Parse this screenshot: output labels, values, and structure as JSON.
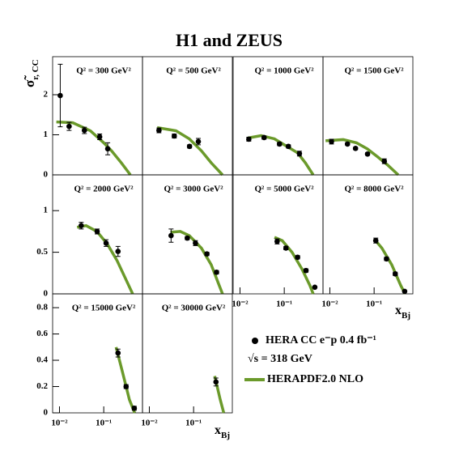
{
  "title": "H1 and ZEUS",
  "ylabel": {
    "symbol": "σ̃",
    "subscript": "r, CC"
  },
  "xlabel": {
    "symbol": "x",
    "subscript": "Bj"
  },
  "legend_note": "√s = 318 GeV",
  "chart_data": [
    {
      "type": "scatter",
      "label": "Q² = 300 GeV²",
      "xlim": [
        0.007,
        0.75
      ],
      "ylim": [
        0,
        2.95
      ],
      "yticks": [
        0,
        1,
        2
      ],
      "log_x": true,
      "series": [
        {
          "name": "HERA CC e⁻p 0.4 fb⁻¹",
          "color": "#000000",
          "x": [
            0.0104,
            0.0165,
            0.0366,
            0.081,
            0.123
          ],
          "values": [
            1.98,
            1.21,
            1.11,
            0.95,
            0.65
          ],
          "errors": [
            0.78,
            0.1,
            0.08,
            0.07,
            0.15
          ]
        },
        {
          "name": "HERAPDF2.0 NLO",
          "color": "#6b9a2b",
          "x": [
            0.0085,
            0.02,
            0.05,
            0.1,
            0.15,
            0.25,
            0.4
          ],
          "values": [
            1.32,
            1.3,
            1.1,
            0.8,
            0.6,
            0.3,
            0
          ]
        }
      ]
    },
    {
      "type": "scatter",
      "label": "Q² = 500 GeV²",
      "xlim": [
        0.007,
        0.75
      ],
      "ylim": [
        0,
        2.95
      ],
      "log_x": true,
      "series": [
        {
          "color": "#000000",
          "x": [
            0.0165,
            0.0366,
            0.081,
            0.128
          ],
          "values": [
            1.11,
            0.97,
            0.71,
            0.83
          ],
          "errors": [
            0.06,
            0.05,
            0.04,
            0.08
          ]
        },
        {
          "color": "#6b9a2b",
          "x": [
            0.015,
            0.04,
            0.08,
            0.15,
            0.25,
            0.45
          ],
          "values": [
            1.18,
            1.1,
            0.9,
            0.6,
            0.3,
            0
          ]
        }
      ]
    },
    {
      "type": "scatter",
      "label": "Q² = 1000 GeV²",
      "xlim": [
        0.007,
        0.75
      ],
      "ylim": [
        0,
        2.95
      ],
      "log_x": true,
      "series": [
        {
          "color": "#000000",
          "x": [
            0.0158,
            0.035,
            0.078,
            0.124,
            0.22
          ],
          "values": [
            0.89,
            0.93,
            0.77,
            0.71,
            0.53
          ],
          "errors": [
            0.05,
            0.04,
            0.04,
            0.04,
            0.06
          ]
        },
        {
          "color": "#6b9a2b",
          "x": [
            0.015,
            0.03,
            0.06,
            0.1,
            0.2,
            0.3,
            0.45
          ],
          "values": [
            0.92,
            0.98,
            0.9,
            0.75,
            0.55,
            0.3,
            0
          ]
        }
      ]
    },
    {
      "type": "scatter",
      "label": "Q² = 1500 GeV²",
      "xlim": [
        0.007,
        0.75
      ],
      "ylim": [
        0,
        2.95
      ],
      "log_x": true,
      "series": [
        {
          "color": "#000000",
          "x": [
            0.0109,
            0.025,
            0.038,
            0.071,
            0.17
          ],
          "values": [
            0.83,
            0.77,
            0.66,
            0.52,
            0.34
          ],
          "errors": [
            0.06,
            0.03,
            0.03,
            0.03,
            0.06
          ]
        },
        {
          "color": "#6b9a2b",
          "x": [
            0.008,
            0.02,
            0.04,
            0.07,
            0.12,
            0.2,
            0.35
          ],
          "values": [
            0.85,
            0.88,
            0.8,
            0.65,
            0.45,
            0.25,
            0
          ]
        }
      ]
    },
    {
      "type": "scatter",
      "label": "Q² = 2000 GeV²",
      "xlim": [
        0.007,
        0.75
      ],
      "ylim": [
        0,
        1.43
      ],
      "yticks": [
        0,
        0.5,
        1
      ],
      "log_x": true,
      "series": [
        {
          "color": "#000000",
          "x": [
            0.031,
            0.071,
            0.113,
            0.21
          ],
          "values": [
            0.82,
            0.75,
            0.61,
            0.51
          ],
          "errors": [
            0.04,
            0.03,
            0.04,
            0.06
          ]
        },
        {
          "color": "#6b9a2b",
          "x": [
            0.025,
            0.04,
            0.07,
            0.12,
            0.2,
            0.3,
            0.45
          ],
          "values": [
            0.8,
            0.82,
            0.75,
            0.6,
            0.4,
            0.2,
            0
          ]
        }
      ]
    },
    {
      "type": "scatter",
      "label": "Q² = 3000 GeV²",
      "xlim": [
        0.007,
        0.75
      ],
      "ylim": [
        0,
        1.43
      ],
      "log_x": true,
      "series": [
        {
          "color": "#000000",
          "x": [
            0.031,
            0.072,
            0.11,
            0.2,
            0.33
          ],
          "values": [
            0.7,
            0.67,
            0.61,
            0.48,
            0.26
          ],
          "errors": [
            0.08,
            0.02,
            0.03,
            0.02,
            0.02
          ]
        },
        {
          "color": "#6b9a2b",
          "x": [
            0.03,
            0.05,
            0.08,
            0.15,
            0.25,
            0.38,
            0.45
          ],
          "values": [
            0.74,
            0.75,
            0.7,
            0.55,
            0.35,
            0.1,
            0
          ]
        }
      ]
    },
    {
      "type": "scatter",
      "label": "Q² = 5000 GeV²",
      "xlim": [
        0.007,
        0.75
      ],
      "ylim": [
        0,
        1.43
      ],
      "log_x": true,
      "xticks": [
        {
          "value": 0.01,
          "label": "10⁻²"
        },
        {
          "value": 0.1,
          "label": "10⁻¹"
        }
      ],
      "series": [
        {
          "color": "#000000",
          "x": [
            0.069,
            0.109,
            0.2,
            0.31,
            0.49
          ],
          "values": [
            0.63,
            0.55,
            0.44,
            0.28,
            0.08
          ],
          "errors": [
            0.03,
            0.02,
            0.02,
            0.02,
            0.01
          ]
        },
        {
          "color": "#6b9a2b",
          "x": [
            0.06,
            0.09,
            0.15,
            0.25,
            0.38,
            0.45
          ],
          "values": [
            0.68,
            0.64,
            0.5,
            0.3,
            0.1,
            0
          ]
        }
      ]
    },
    {
      "type": "scatter",
      "label": "Q² = 8000 GeV²",
      "xlim": [
        0.007,
        0.75
      ],
      "ylim": [
        0,
        1.43
      ],
      "log_x": true,
      "xticks": [
        {
          "value": 0.01,
          "label": "10⁻²"
        },
        {
          "value": 0.1,
          "label": "10⁻¹"
        }
      ],
      "series": [
        {
          "color": "#000000",
          "x": [
            0.109,
            0.19,
            0.3,
            0.49
          ],
          "values": [
            0.64,
            0.42,
            0.24,
            0.03
          ],
          "errors": [
            0.03,
            0.02,
            0.02,
            0.01
          ]
        },
        {
          "color": "#6b9a2b",
          "x": [
            0.1,
            0.15,
            0.25,
            0.4,
            0.5
          ],
          "values": [
            0.66,
            0.55,
            0.35,
            0.1,
            0
          ]
        }
      ]
    },
    {
      "type": "scatter",
      "label": "Q² = 15000 GeV²",
      "xlim": [
        0.007,
        0.75
      ],
      "ylim": [
        0,
        0.905
      ],
      "yticks": [
        0,
        0.2,
        0.4,
        0.6,
        0.8
      ],
      "log_x": true,
      "xticks": [
        {
          "value": 0.01,
          "label": "10⁻²"
        },
        {
          "value": 0.1,
          "label": "10⁻¹"
        }
      ],
      "series": [
        {
          "color": "#000000",
          "x": [
            0.21,
            0.32,
            0.49
          ],
          "values": [
            0.455,
            0.2,
            0.035
          ],
          "errors": [
            0.03,
            0.015,
            0.015
          ]
        },
        {
          "color": "#6b9a2b",
          "x": [
            0.19,
            0.27,
            0.38,
            0.5
          ],
          "values": [
            0.5,
            0.3,
            0.1,
            0
          ]
        }
      ]
    },
    {
      "type": "scatter",
      "label": "Q² = 30000 GeV²",
      "xlim": [
        0.007,
        0.75
      ],
      "ylim": [
        0,
        0.905
      ],
      "log_x": true,
      "xticks": [
        {
          "value": 0.01,
          "label": "10⁻²"
        },
        {
          "value": 0.1,
          "label": "10⁻¹"
        }
      ],
      "series": [
        {
          "color": "#000000",
          "x": [
            0.32
          ],
          "values": [
            0.235
          ],
          "errors": [
            0.03
          ]
        },
        {
          "color": "#6b9a2b",
          "x": [
            0.3,
            0.4,
            0.48
          ],
          "values": [
            0.28,
            0.1,
            0
          ]
        }
      ]
    }
  ]
}
